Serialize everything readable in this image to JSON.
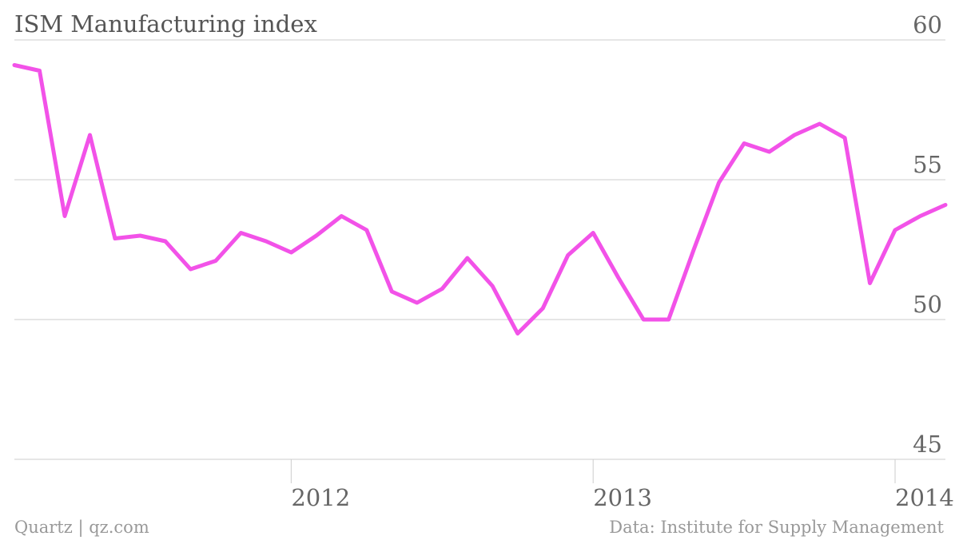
{
  "chart_data": {
    "type": "line",
    "title": "ISM Manufacturing index",
    "xlabel": "",
    "ylabel": "",
    "ylim": [
      45,
      60
    ],
    "yticks": [
      60,
      55,
      50,
      45
    ],
    "xticks": [
      {
        "label": "2012",
        "date": "2012-01"
      },
      {
        "label": "2013",
        "date": "2013-01"
      },
      {
        "label": "2014",
        "date": "2014-01"
      }
    ],
    "xrange": [
      "2011-02",
      "2014-03"
    ],
    "grid": true,
    "color": "#f252e8",
    "series": [
      {
        "name": "",
        "x": [
          "2011-02",
          "2011-03",
          "2011-04",
          "2011-05",
          "2011-06",
          "2011-07",
          "2011-08",
          "2011-09",
          "2011-10",
          "2011-11",
          "2011-12",
          "2012-01",
          "2012-02",
          "2012-03",
          "2012-04",
          "2012-05",
          "2012-06",
          "2012-07",
          "2012-08",
          "2012-09",
          "2012-10",
          "2012-11",
          "2012-12",
          "2013-01",
          "2013-02",
          "2013-03",
          "2013-04",
          "2013-05",
          "2013-06",
          "2013-07",
          "2013-08",
          "2013-09",
          "2013-10",
          "2013-11",
          "2013-12",
          "2014-01",
          "2014-02",
          "2014-03"
        ],
        "values": [
          59.1,
          58.9,
          53.7,
          56.6,
          52.9,
          53.0,
          52.8,
          51.8,
          52.1,
          53.1,
          52.8,
          52.4,
          53.0,
          53.7,
          53.2,
          51.0,
          50.6,
          51.1,
          52.2,
          51.2,
          49.5,
          50.4,
          52.3,
          53.1,
          51.5,
          50.0,
          50.0,
          52.5,
          54.9,
          56.3,
          56.0,
          56.6,
          57.0,
          56.5,
          51.3,
          53.2,
          53.7,
          54.1
        ]
      }
    ]
  },
  "footer": {
    "source_left": "Quartz | qz.com",
    "source_right": "Data: Institute for Supply Management"
  }
}
